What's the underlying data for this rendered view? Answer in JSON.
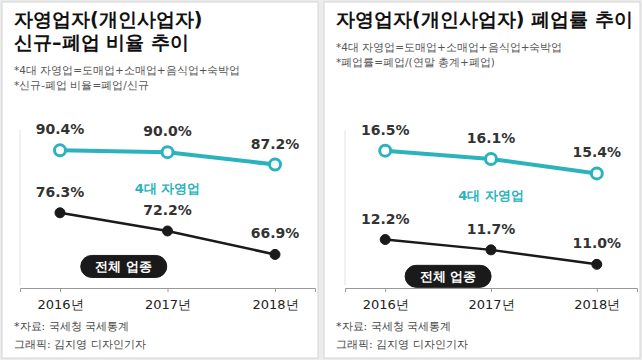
{
  "chart_data": [
    {
      "type": "line",
      "title": [
        "자영업자(개인사업자)",
        "신규–폐업 비율 추이"
      ],
      "notes": [
        "*4대 자영업=도매업+소매업+음식업+숙박업",
        "*신규-폐업 비율=폐업/신규"
      ],
      "categories": [
        "2016년",
        "2017년",
        "2018년"
      ],
      "series": [
        {
          "name": "4대 자영업",
          "color": "#2bb3bd",
          "marker": "circle-open",
          "values": [
            90.4,
            90.0,
            87.2
          ],
          "value_labels": [
            "90.4%",
            "90.0%",
            "87.2%"
          ]
        },
        {
          "name": "전체 업종",
          "color": "#1a1a1a",
          "marker": "circle",
          "values": [
            76.3,
            72.2,
            66.9
          ],
          "value_labels": [
            "76.3%",
            "72.2%",
            "66.9%"
          ]
        }
      ],
      "ylim": [
        60,
        95
      ],
      "tick_labels": "x",
      "data_labels": true,
      "source": "*자료: 국세청 국세통계",
      "credit": "그래픽: 김지영 디자인기자"
    },
    {
      "type": "line",
      "title": [
        "자영업자(개인사업자) 폐업률 추이"
      ],
      "notes": [
        "*4대 자영업=도매업+소매업+음식업+숙박업",
        "*폐업률=폐업/(연말 총계+폐업)"
      ],
      "categories": [
        "2016년",
        "2017년",
        "2018년"
      ],
      "series": [
        {
          "name": "4대 자영업",
          "color": "#2bb3bd",
          "marker": "circle-open",
          "values": [
            16.5,
            16.1,
            15.4
          ],
          "value_labels": [
            "16.5%",
            "16.1%",
            "15.4%"
          ]
        },
        {
          "name": "전체 업종",
          "color": "#1a1a1a",
          "marker": "circle",
          "values": [
            12.2,
            11.7,
            11.0
          ],
          "value_labels": [
            "12.2%",
            "11.7%",
            "11.0%"
          ]
        }
      ],
      "ylim": [
        10,
        17.5
      ],
      "tick_labels": "x",
      "data_labels": true,
      "source": "*자료: 국세청 국세통계",
      "credit": "그래픽: 김지영 디자인기자"
    }
  ]
}
